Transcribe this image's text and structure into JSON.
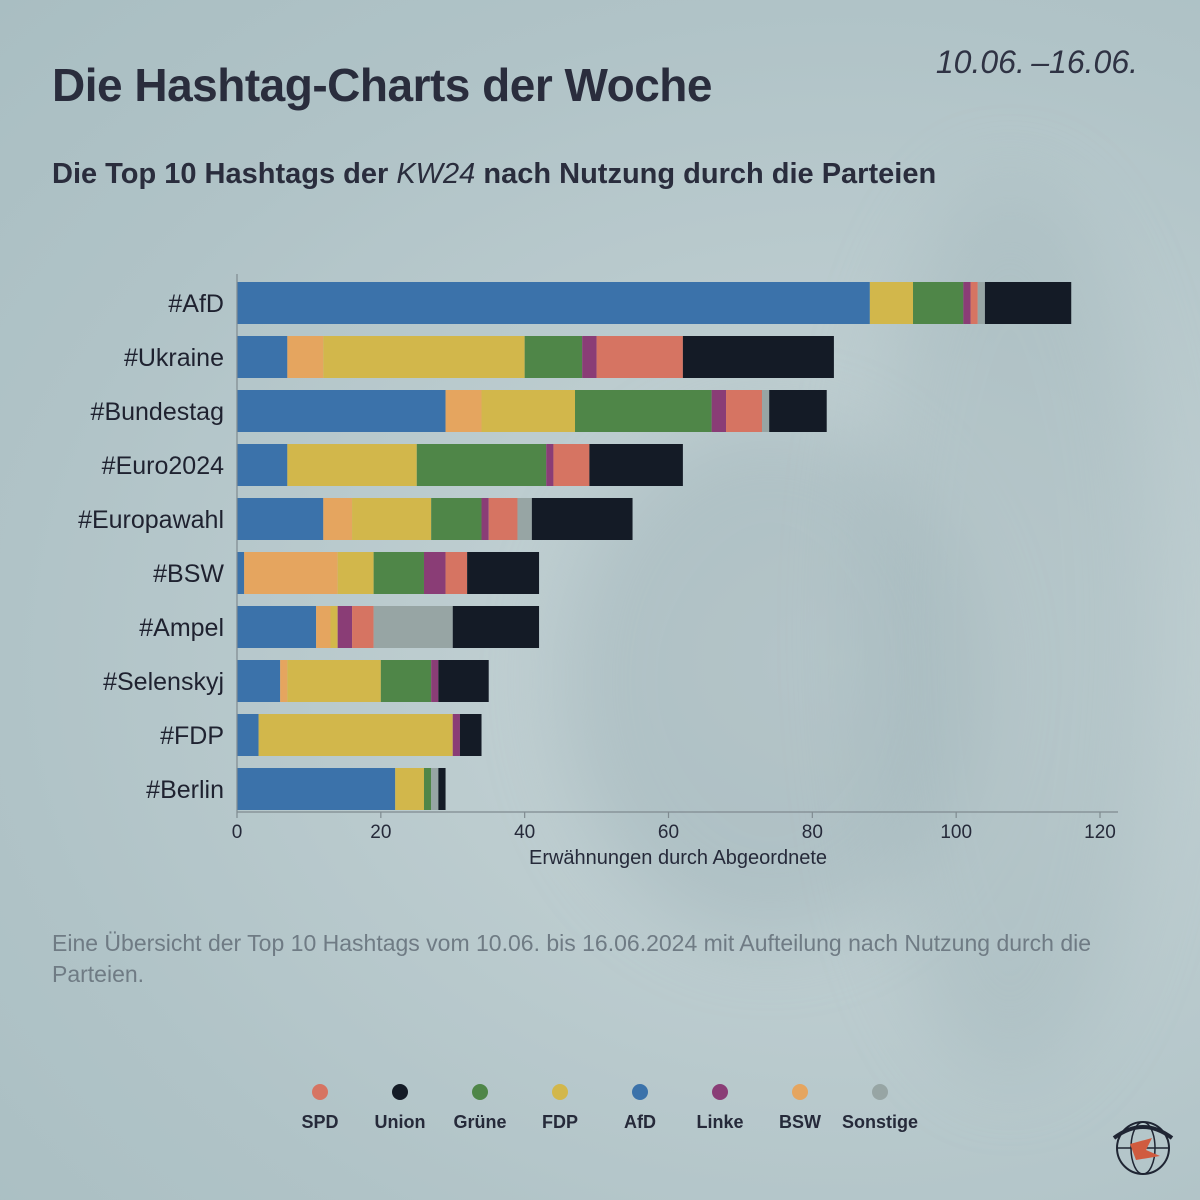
{
  "header": {
    "title": "Die Hashtag-Charts der Woche",
    "date_range": "10.06. –16.06.",
    "subtitle_pre": "Die Top 10 Hashtags der ",
    "subtitle_week": "KW24",
    "subtitle_post": " nach Nutzung durch die Parteien"
  },
  "description": "Eine Übersicht der Top 10 Hashtags vom 10.06. bis 16.06.2024 mit Aufteilung nach Nutzung durch die Parteien.",
  "colors": {
    "AfD": "#3b72aa",
    "BSW": "#e5a55f",
    "FDP": "#d2b74b",
    "Grüne": "#4f8648",
    "Linke": "#8a3d76",
    "SPD": "#d67462",
    "Sonstige": "#97a5a4",
    "Union": "#141b26"
  },
  "legend": [
    "SPD",
    "Union",
    "Grüne",
    "FDP",
    "AfD",
    "Linke",
    "BSW",
    "Sonstige"
  ],
  "chart_data": {
    "type": "bar",
    "orientation": "horizontal",
    "stacked": true,
    "xlabel": "Erwähnungen durch Abgeordnete",
    "xlim": [
      0,
      120
    ],
    "xticks": [
      0,
      20,
      40,
      60,
      80,
      100,
      120
    ],
    "grid": false,
    "legend_position": "bottom",
    "categories": [
      "#AfD",
      "#Ukraine",
      "#Bundestag",
      "#Euro2024",
      "#Europawahl",
      "#BSW",
      "#Ampel",
      "#Selenskyj",
      "#FDP",
      "#Berlin"
    ],
    "series": [
      {
        "name": "AfD",
        "values": [
          88,
          7,
          29,
          7,
          12,
          1,
          11,
          6,
          3,
          22
        ]
      },
      {
        "name": "BSW",
        "values": [
          0,
          5,
          5,
          0,
          4,
          13,
          2,
          1,
          0,
          0
        ]
      },
      {
        "name": "FDP",
        "values": [
          6,
          28,
          13,
          18,
          11,
          5,
          1,
          13,
          27,
          4
        ]
      },
      {
        "name": "Grüne",
        "values": [
          7,
          8,
          19,
          18,
          7,
          7,
          0,
          7,
          0,
          1
        ]
      },
      {
        "name": "Linke",
        "values": [
          1,
          2,
          2,
          1,
          1,
          3,
          2,
          1,
          1,
          0
        ]
      },
      {
        "name": "SPD",
        "values": [
          1,
          12,
          5,
          5,
          4,
          3,
          3,
          0,
          0,
          0
        ]
      },
      {
        "name": "Sonstige",
        "values": [
          1,
          0,
          1,
          0,
          2,
          0,
          11,
          0,
          0,
          1
        ]
      },
      {
        "name": "Union",
        "values": [
          12,
          21,
          8,
          13,
          14,
          10,
          12,
          7,
          3,
          1
        ]
      }
    ]
  }
}
